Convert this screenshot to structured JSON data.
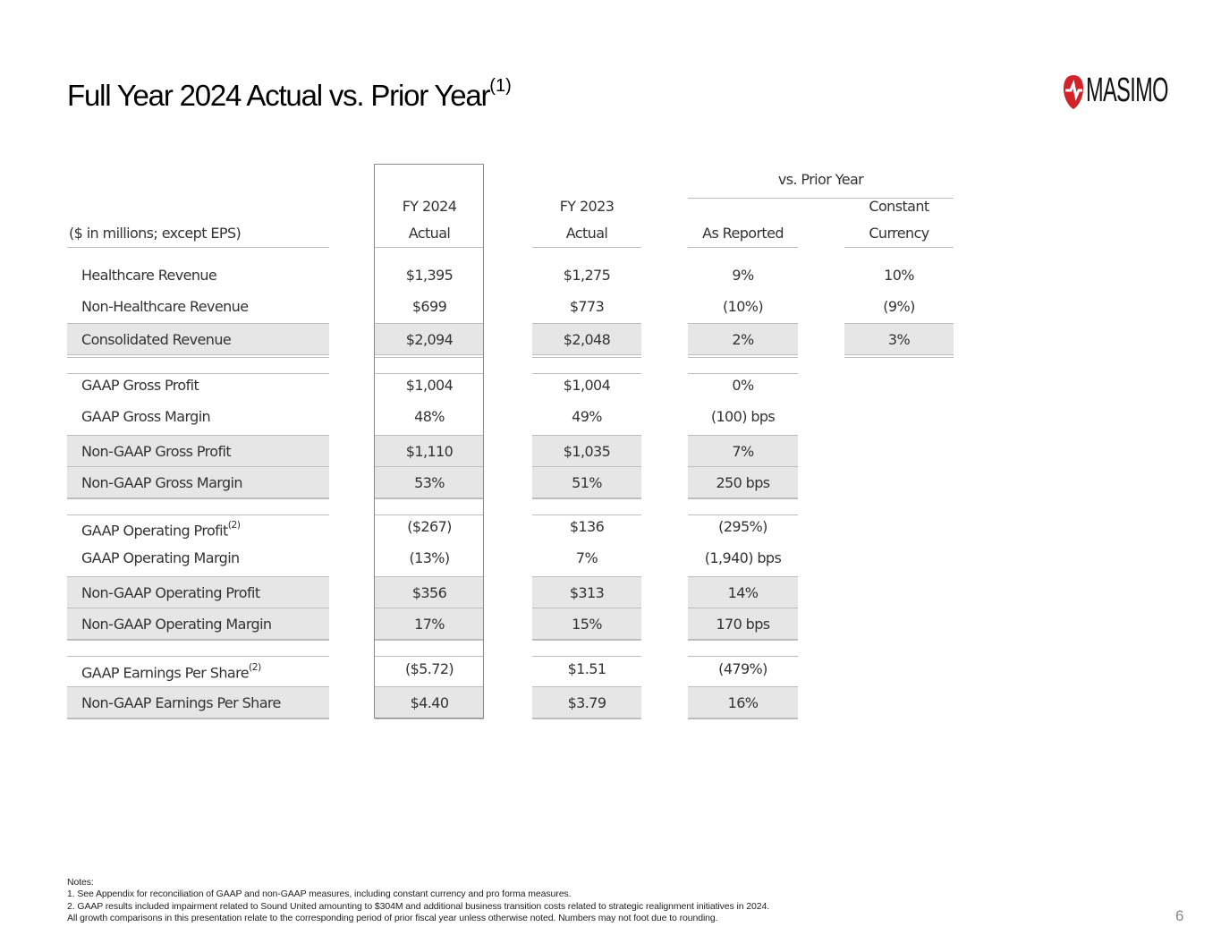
{
  "slide": {
    "title": "Full Year 2024 Actual vs. Prior Year",
    "title_superscript": "(1)",
    "logo_text": "MASIMO",
    "brand_color": "#d2232a",
    "page_number": "6"
  },
  "table": {
    "group_header": "vs. Prior Year",
    "headers": {
      "label": "($ in millions; except EPS)",
      "fy2024": [
        "FY 2024",
        "Actual"
      ],
      "fy2023": [
        "FY 2023",
        "Actual"
      ],
      "as_reported": "As Reported",
      "constant_currency": [
        "Constant",
        "Currency"
      ]
    },
    "rows": [
      {
        "label": "Healthcare Revenue",
        "fy2024": "$1,395",
        "fy2023": "$1,275",
        "as_reported": "9%",
        "constant_currency": "10%"
      },
      {
        "label": "Non-Healthcare Revenue",
        "fy2024": "$699",
        "fy2023": "$773",
        "as_reported": "(10%)",
        "constant_currency": "(9%)"
      },
      {
        "label": "Consolidated Revenue",
        "fy2024": "$2,094",
        "fy2023": "$2,048",
        "as_reported": "2%",
        "constant_currency": "3%"
      },
      {
        "label": "GAAP Gross Profit",
        "fy2024": "$1,004",
        "fy2023": "$1,004",
        "as_reported": "0%"
      },
      {
        "label": "GAAP Gross Margin",
        "fy2024": "48%",
        "fy2023": "49%",
        "as_reported": "(100) bps"
      },
      {
        "label": "Non-GAAP Gross Profit",
        "fy2024": "$1,110",
        "fy2023": "$1,035",
        "as_reported": "7%"
      },
      {
        "label": "Non-GAAP Gross Margin",
        "fy2024": "53%",
        "fy2023": "51%",
        "as_reported": "250 bps"
      },
      {
        "label": "GAAP Operating Profit",
        "label_sup": "(2)",
        "fy2024": "($267)",
        "fy2023": "$136",
        "as_reported": "(295%)"
      },
      {
        "label": "GAAP Operating Margin",
        "fy2024": "(13%)",
        "fy2023": "7%",
        "as_reported": "(1,940) bps"
      },
      {
        "label": "Non-GAAP Operating Profit",
        "fy2024": "$356",
        "fy2023": "$313",
        "as_reported": "14%"
      },
      {
        "label": "Non-GAAP Operating Margin",
        "fy2024": "17%",
        "fy2023": "15%",
        "as_reported": "170 bps"
      },
      {
        "label": "GAAP Earnings Per Share",
        "label_sup": "(2)",
        "fy2024": "($5.72)",
        "fy2023": "$1.51",
        "as_reported": "(479%)"
      },
      {
        "label": "Non-GAAP Earnings Per Share",
        "fy2024": "$4.40",
        "fy2023": "$3.79",
        "as_reported": "16%"
      }
    ]
  },
  "notes": {
    "heading": "Notes:",
    "items": [
      "1.  See Appendix for reconciliation of GAAP and non-GAAP measures, including constant currency and pro forma measures.",
      "2.  GAAP results included impairment related to Sound United amounting to $304M and additional business transition costs related to strategic realignment initiatives in 2024.",
      "All growth comparisons in this presentation relate to the corresponding period of prior fiscal year unless otherwise noted.  Numbers may not foot due to rounding."
    ]
  }
}
